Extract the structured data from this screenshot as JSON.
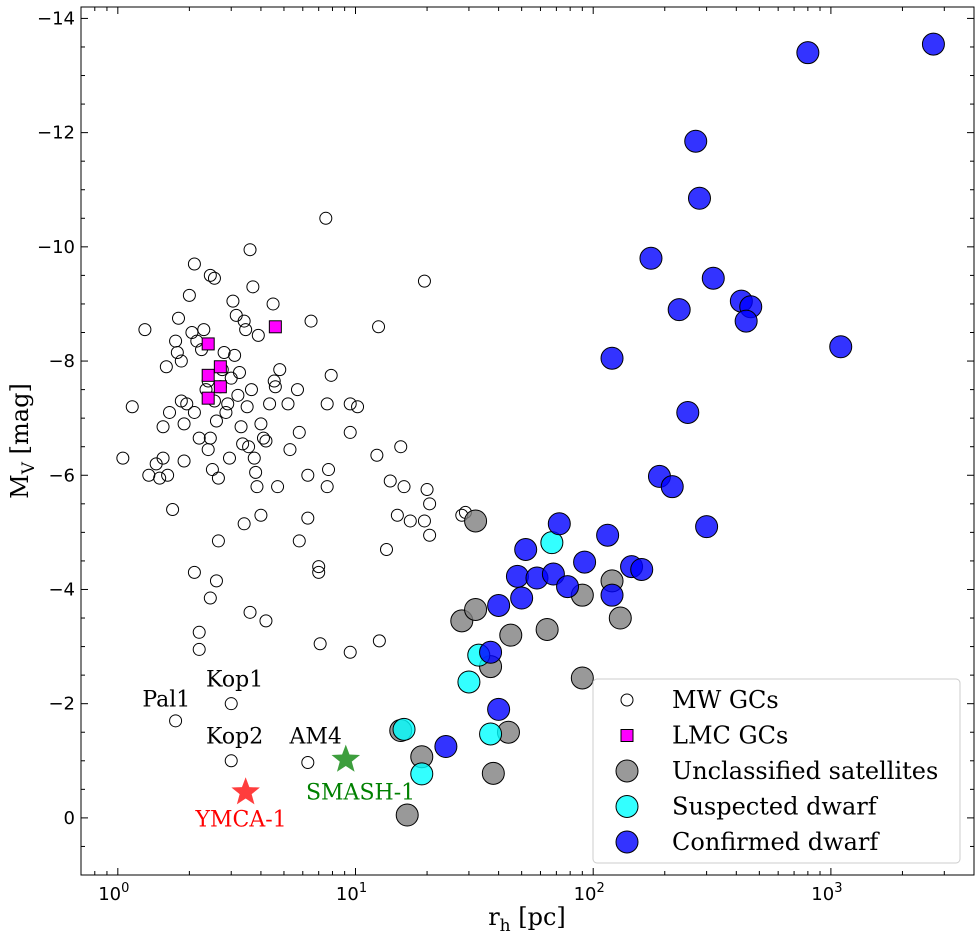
{
  "chart_data": {
    "type": "scatter",
    "xscale": "log",
    "xlim": [
      0.7,
      4000
    ],
    "ylim": [
      1,
      -14.2
    ],
    "xlabel_main": "r",
    "xlabel_sub": "h",
    "xlabel_unit": " [pc]",
    "ylabel_main": "M",
    "ylabel_sub": "V",
    "ylabel_unit": " [mag]",
    "x_ticks": [
      {
        "value": 1,
        "base": "10",
        "exp": "0"
      },
      {
        "value": 10,
        "base": "10",
        "exp": "1"
      },
      {
        "value": 100,
        "base": "10",
        "exp": "2"
      },
      {
        "value": 1000,
        "base": "10",
        "exp": "3"
      }
    ],
    "y_ticks": [
      {
        "value": 0,
        "label": "0"
      },
      {
        "value": -2,
        "label": "−2"
      },
      {
        "value": -4,
        "label": "−4"
      },
      {
        "value": -6,
        "label": "−6"
      },
      {
        "value": -8,
        "label": "−8"
      },
      {
        "value": -10,
        "label": "−10"
      },
      {
        "value": -12,
        "label": "−12"
      },
      {
        "value": -14,
        "label": "−14"
      }
    ],
    "series": [
      {
        "name": "MW GCs",
        "marker": "circle-open",
        "color": "#000000",
        "points": [
          [
            1.05,
            -6.3
          ],
          [
            1.15,
            -7.2
          ],
          [
            1.3,
            -8.55
          ],
          [
            1.35,
            -6.0
          ],
          [
            1.45,
            -6.2
          ],
          [
            1.5,
            -5.95
          ],
          [
            1.55,
            -6.3
          ],
          [
            1.55,
            -6.85
          ],
          [
            1.6,
            -7.9
          ],
          [
            1.62,
            -6.0
          ],
          [
            1.65,
            -7.1
          ],
          [
            1.7,
            -5.4
          ],
          [
            1.75,
            -8.35
          ],
          [
            1.78,
            -8.15
          ],
          [
            1.8,
            -8.75
          ],
          [
            1.85,
            -8.0
          ],
          [
            1.85,
            -7.3
          ],
          [
            1.9,
            -6.25
          ],
          [
            1.9,
            -6.9
          ],
          [
            1.95,
            -7.25
          ],
          [
            2.0,
            -9.15
          ],
          [
            2.05,
            -8.5
          ],
          [
            2.1,
            -9.7
          ],
          [
            2.1,
            -7.1
          ],
          [
            2.15,
            -8.35
          ],
          [
            2.2,
            -6.65
          ],
          [
            2.25,
            -8.2
          ],
          [
            2.3,
            -8.55
          ],
          [
            2.35,
            -7.5
          ],
          [
            2.4,
            -7.65
          ],
          [
            2.4,
            -6.45
          ],
          [
            2.45,
            -9.5
          ],
          [
            2.45,
            -6.65
          ],
          [
            2.5,
            -6.1
          ],
          [
            2.55,
            -9.45
          ],
          [
            2.55,
            -7.3
          ],
          [
            2.6,
            -6.95
          ],
          [
            2.65,
            -5.95
          ],
          [
            2.7,
            -7.55
          ],
          [
            2.75,
            -7.85
          ],
          [
            2.8,
            -8.15
          ],
          [
            2.85,
            -7.1
          ],
          [
            2.9,
            -7.25
          ],
          [
            2.95,
            -6.3
          ],
          [
            3.0,
            -7.7
          ],
          [
            3.05,
            -9.05
          ],
          [
            3.1,
            -8.1
          ],
          [
            3.15,
            -8.8
          ],
          [
            3.2,
            -7.4
          ],
          [
            3.25,
            -7.8
          ],
          [
            3.3,
            -6.85
          ],
          [
            3.35,
            -6.55
          ],
          [
            3.4,
            -8.7
          ],
          [
            3.45,
            -8.55
          ],
          [
            3.5,
            -7.2
          ],
          [
            3.55,
            -6.5
          ],
          [
            3.6,
            -9.95
          ],
          [
            3.65,
            -7.5
          ],
          [
            3.7,
            -9.3
          ],
          [
            3.75,
            -6.3
          ],
          [
            3.8,
            -6.05
          ],
          [
            3.85,
            -5.8
          ],
          [
            3.9,
            -8.45
          ],
          [
            4.0,
            -6.9
          ],
          [
            4.1,
            -6.65
          ],
          [
            4.2,
            -6.6
          ],
          [
            4.35,
            -7.25
          ],
          [
            4.5,
            -9.0
          ],
          [
            4.55,
            -7.65
          ],
          [
            4.6,
            -7.55
          ],
          [
            4.8,
            -7.85
          ],
          [
            5.2,
            -7.25
          ],
          [
            5.3,
            -6.45
          ],
          [
            5.7,
            -7.5
          ],
          [
            5.8,
            -6.75
          ],
          [
            6.3,
            -6.0
          ],
          [
            6.5,
            -8.7
          ],
          [
            7.0,
            -4.4
          ],
          [
            7.5,
            -10.5
          ],
          [
            7.6,
            -7.25
          ],
          [
            7.7,
            -6.1
          ],
          [
            7.9,
            -7.75
          ],
          [
            9.5,
            -7.25
          ],
          [
            9.5,
            -6.75
          ],
          [
            10.2,
            -7.2
          ],
          [
            12.3,
            -6.35
          ],
          [
            12.5,
            -8.6
          ],
          [
            14.0,
            -5.9
          ],
          [
            15.0,
            -5.3
          ],
          [
            15.5,
            -6.5
          ],
          [
            16.0,
            -5.8
          ],
          [
            17.0,
            -5.2
          ],
          [
            19.5,
            -9.4
          ],
          [
            19.5,
            -5.2
          ],
          [
            20.0,
            -5.75
          ],
          [
            20.5,
            -5.5
          ],
          [
            20.5,
            -4.95
          ],
          [
            28.0,
            -5.3
          ],
          [
            29.0,
            -5.35
          ],
          [
            2.1,
            -4.3
          ],
          [
            2.2,
            -3.25
          ],
          [
            2.2,
            -2.95
          ],
          [
            2.45,
            -3.85
          ],
          [
            2.6,
            -4.15
          ],
          [
            2.65,
            -4.85
          ],
          [
            3.4,
            -5.15
          ],
          [
            3.6,
            -3.6
          ],
          [
            4.0,
            -5.3
          ],
          [
            4.2,
            -3.45
          ],
          [
            4.7,
            -5.8
          ],
          [
            5.8,
            -4.85
          ],
          [
            6.3,
            -5.25
          ],
          [
            7.0,
            -4.3
          ],
          [
            7.1,
            -3.05
          ],
          [
            7.6,
            -5.8
          ],
          [
            9.5,
            -2.9
          ],
          [
            12.6,
            -3.1
          ],
          [
            13.5,
            -4.7
          ],
          [
            1.75,
            -1.7
          ],
          [
            3.0,
            -2.0
          ],
          [
            3.0,
            -1.0
          ],
          [
            6.3,
            -0.97
          ]
        ]
      },
      {
        "name": "LMC GCs",
        "marker": "square",
        "color": "#ff00ff",
        "points": [
          [
            2.4,
            -8.3
          ],
          [
            2.7,
            -7.9
          ],
          [
            2.4,
            -7.75
          ],
          [
            2.7,
            -7.55
          ],
          [
            2.4,
            -7.35
          ],
          [
            4.6,
            -8.6
          ]
        ]
      },
      {
        "name": "Unclassified satellites",
        "marker": "circle-filled",
        "color": "#808080",
        "points": [
          [
            32,
            -5.2
          ],
          [
            28,
            -3.45
          ],
          [
            32,
            -3.65
          ],
          [
            37,
            -2.65
          ],
          [
            45,
            -3.2
          ],
          [
            44,
            -1.5
          ],
          [
            38,
            -0.78
          ],
          [
            19,
            -1.07
          ],
          [
            15.5,
            -1.53
          ],
          [
            16.5,
            -0.05
          ],
          [
            64,
            -3.3
          ],
          [
            90,
            -3.9
          ],
          [
            90,
            -2.45
          ],
          [
            120,
            -4.15
          ],
          [
            130,
            -3.5
          ]
        ]
      },
      {
        "name": "Suspected dwarf",
        "marker": "circle-filled",
        "color": "#00ffff",
        "points": [
          [
            67,
            -4.82
          ],
          [
            33,
            -2.85
          ],
          [
            30,
            -2.38
          ],
          [
            16,
            -1.55
          ],
          [
            37,
            -1.47
          ],
          [
            19,
            -0.77
          ]
        ]
      },
      {
        "name": "Confirmed dwarf",
        "marker": "circle-filled",
        "color": "#0000ff",
        "points": [
          [
            2700,
            -13.55
          ],
          [
            800,
            -13.4
          ],
          [
            270,
            -11.85
          ],
          [
            280,
            -10.85
          ],
          [
            175,
            -9.8
          ],
          [
            320,
            -9.45
          ],
          [
            230,
            -8.9
          ],
          [
            420,
            -9.05
          ],
          [
            460,
            -8.95
          ],
          [
            440,
            -8.7
          ],
          [
            1100,
            -8.25
          ],
          [
            120,
            -8.05
          ],
          [
            250,
            -7.1
          ],
          [
            190,
            -5.98
          ],
          [
            215,
            -5.8
          ],
          [
            300,
            -5.1
          ],
          [
            72,
            -5.15
          ],
          [
            115,
            -4.95
          ],
          [
            52,
            -4.7
          ],
          [
            92,
            -4.48
          ],
          [
            48,
            -4.23
          ],
          [
            58,
            -4.2
          ],
          [
            68,
            -4.27
          ],
          [
            145,
            -4.4
          ],
          [
            160,
            -4.35
          ],
          [
            78,
            -4.05
          ],
          [
            50,
            -3.85
          ],
          [
            40,
            -3.72
          ],
          [
            120,
            -3.9
          ],
          [
            37,
            -2.9
          ],
          [
            40,
            -1.9
          ],
          [
            24,
            -1.25
          ]
        ]
      },
      {
        "name": "YMCA-1",
        "marker": "star",
        "color": "#ff3333",
        "points": [
          [
            3.45,
            -0.45
          ]
        ]
      },
      {
        "name": "SMASH-1",
        "marker": "star",
        "color": "#339933",
        "points": [
          [
            9.1,
            -1.02
          ]
        ]
      }
    ],
    "annotations": [
      {
        "text": "Pal1",
        "x": 1.6,
        "y": -1.95,
        "color": "#000000"
      },
      {
        "text": "Kop1",
        "x": 3.1,
        "y": -2.3,
        "color": "#000000"
      },
      {
        "text": "Kop2",
        "x": 3.1,
        "y": -1.3,
        "color": "#000000"
      },
      {
        "text": "AM4",
        "x": 6.8,
        "y": -1.3,
        "color": "#000000"
      },
      {
        "text": "SMASH-1",
        "x": 10.5,
        "y": -0.32,
        "color": "#008000"
      },
      {
        "text": "YMCA-1",
        "x": 3.3,
        "y": 0.15,
        "color": "#ff0000"
      }
    ],
    "legend": {
      "position": "bottom-right",
      "entries": [
        {
          "label": "MW GCs",
          "marker": "circle-open",
          "color": "#ffffff"
        },
        {
          "label": "LMC GCs",
          "marker": "square",
          "color": "#ff00ff"
        },
        {
          "label": "Unclassified satellites",
          "marker": "circle-filled",
          "color": "#808080"
        },
        {
          "label": "Suspected dwarf",
          "marker": "circle-filled",
          "color": "#00ffff"
        },
        {
          "label": "Confirmed dwarf",
          "marker": "circle-filled",
          "color": "#0000ff"
        }
      ]
    }
  }
}
